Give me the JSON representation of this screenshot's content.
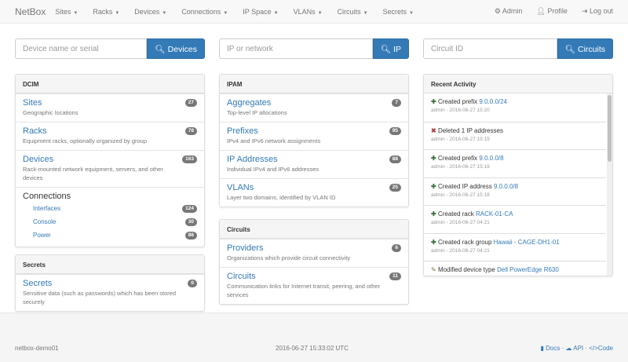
{
  "nav": {
    "brand": "NetBox",
    "menus": [
      "Sites",
      "Racks",
      "Devices",
      "Connections",
      "IP Space",
      "VLANs",
      "Circuits",
      "Secrets"
    ],
    "admin": "Admin",
    "profile": "Profile",
    "logout": "Log out"
  },
  "search": {
    "device": {
      "placeholder": "Device name or serial",
      "button": "Devices"
    },
    "ip": {
      "placeholder": "IP or network",
      "button": "IP"
    },
    "circuit": {
      "placeholder": "Circuit ID",
      "button": "Circuits"
    }
  },
  "dcim": {
    "title": "DCIM",
    "items": [
      {
        "label": "Sites",
        "desc": "Geographic locations",
        "count": "27"
      },
      {
        "label": "Racks",
        "desc": "Equipment racks, optionally organized by group",
        "count": "78"
      },
      {
        "label": "Devices",
        "desc": "Rack-mounted network equipment, servers, and other devices",
        "count": "163"
      }
    ],
    "connections": {
      "label": "Connections",
      "items": [
        {
          "label": "Interfaces",
          "count": "124"
        },
        {
          "label": "Console",
          "count": "30"
        },
        {
          "label": "Power",
          "count": "86"
        }
      ]
    }
  },
  "secrets": {
    "title": "Secrets",
    "items": [
      {
        "label": "Secrets",
        "desc": "Sensitive data (such as passwords) which has been stored securely",
        "count": "0"
      }
    ]
  },
  "ipam": {
    "title": "IPAM",
    "items": [
      {
        "label": "Aggregates",
        "desc": "Top-level IP allocations",
        "count": "7"
      },
      {
        "label": "Prefixes",
        "desc": "IPv4 and IPv6 network assignments",
        "count": "95"
      },
      {
        "label": "IP Addresses",
        "desc": "Individual IPv4 and IPv6 addresses",
        "count": "88"
      },
      {
        "label": "VLANs",
        "desc": "Layer two domains, identified by VLAN ID",
        "count": "25"
      }
    ]
  },
  "circuits": {
    "title": "Circuits",
    "items": [
      {
        "label": "Providers",
        "desc": "Organizations which provide circuit connectivity",
        "count": "6"
      },
      {
        "label": "Circuits",
        "desc": "Communication links for Internet transit, peering, and other services",
        "count": "11"
      }
    ]
  },
  "activity": {
    "title": "Recent Activity",
    "items": [
      {
        "icon": "plus",
        "text": "Created prefix",
        "link": "9.0.0.0/24",
        "meta": "admin - 2016-06-27 15:20"
      },
      {
        "icon": "x",
        "text": "Deleted 1 IP addresses",
        "link": "",
        "meta": "admin - 2016-06-27 15:19"
      },
      {
        "icon": "plus",
        "text": "Created prefix",
        "link": "9.0.0.0/8",
        "meta": "admin - 2016-06-27 15:19"
      },
      {
        "icon": "plus",
        "text": "Created IP address",
        "link": "9.0.0.0/8",
        "meta": "admin - 2016-06-27 15:18"
      },
      {
        "icon": "plus",
        "text": "Created rack",
        "link": "RACK-01-CA",
        "meta": "admin - 2016-06-27 04:21"
      },
      {
        "icon": "plus",
        "text": "Created rack group",
        "link": "Hawaii - CAGE-DH1-01",
        "meta": "admin - 2016-06-27 04:21"
      },
      {
        "icon": "pencil",
        "text": "Modified device type",
        "link": "Dell PowerEdge R630",
        "meta": ""
      }
    ]
  },
  "footer": {
    "hostname": "netbox-demo01",
    "time": "2016-06-27 15:33:02 UTC",
    "docs": "Docs",
    "api": "API",
    "code": "Code",
    "sep": "·"
  }
}
